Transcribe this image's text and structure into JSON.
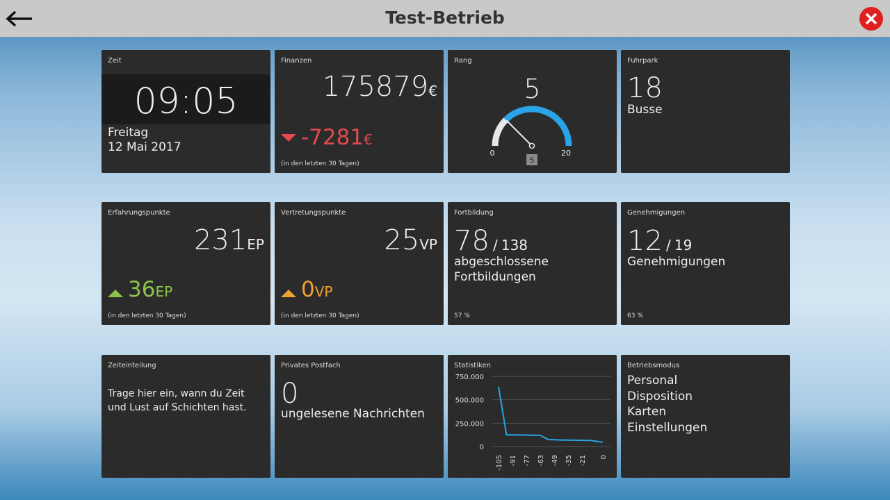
{
  "header": {
    "title": "Test-Betrieb"
  },
  "tiles": [
    {
      "label": "Zeit",
      "time": "09:05",
      "day": "Freitag",
      "date": "12 Mai 2017"
    },
    {
      "label": "Finanzen",
      "value": 175879,
      "unit": "€",
      "change": -7281,
      "change_unit": "€",
      "note": "(in den letzten 30 Tagen)"
    },
    {
      "label": "Rang",
      "value": 5,
      "min": 0,
      "max": 20
    },
    {
      "label": "Fuhrpark",
      "value": 18,
      "text": "Busse"
    },
    {
      "label": "Erfahrungspunkte",
      "value": 231,
      "unit": "EP",
      "change": 36,
      "change_unit": "EP",
      "note": "(in den letzten 30 Tagen)"
    },
    {
      "label": "Vertretungspunkte",
      "value": 25,
      "unit": "VP",
      "change": 0,
      "change_unit": "VP",
      "note": "(in den letzten 30 Tagen)"
    },
    {
      "label": "Fortbildung",
      "value": 78,
      "separator": "/",
      "total": 138,
      "lines": [
        "abgeschlossene",
        "Fortbildungen"
      ],
      "footer": "57 %"
    },
    {
      "label": "Genehmigungen",
      "value": 12,
      "separator": "/",
      "total": 19,
      "lines": [
        "Genehmigungen"
      ],
      "footer": "63 %"
    },
    {
      "label": "Zeiteinteilung",
      "text": "Trage hier ein, wann du Zeit und Lust auf Schichten hast."
    },
    {
      "label": "Privates Postfach",
      "value": 0,
      "text": "ungelesene Nachrichten"
    },
    {
      "label": "Statistiken",
      "chart": {
        "type": "line",
        "color": "#2aa3e8",
        "x": [
          -105,
          -97,
          -63,
          -55,
          -42,
          -12,
          0
        ],
        "values": [
          640000,
          125000,
          120000,
          75000,
          70000,
          65000,
          45000
        ],
        "xlim": [
          -105,
          0
        ],
        "xticks": [
          -105,
          -91,
          -77,
          -63,
          -49,
          -35,
          -21,
          0
        ],
        "ylim": [
          0,
          750000
        ],
        "yticks": [
          {
            "value": 0,
            "label": "0"
          },
          {
            "value": 250000,
            "label": "250.000"
          },
          {
            "value": 500000,
            "label": "500.000"
          },
          {
            "value": 750000,
            "label": "750.000"
          }
        ],
        "grid": true
      }
    },
    {
      "label": "Betriebsmodus",
      "items": [
        "Personal",
        "Disposition",
        "Karten",
        "Einstellungen"
      ]
    }
  ]
}
